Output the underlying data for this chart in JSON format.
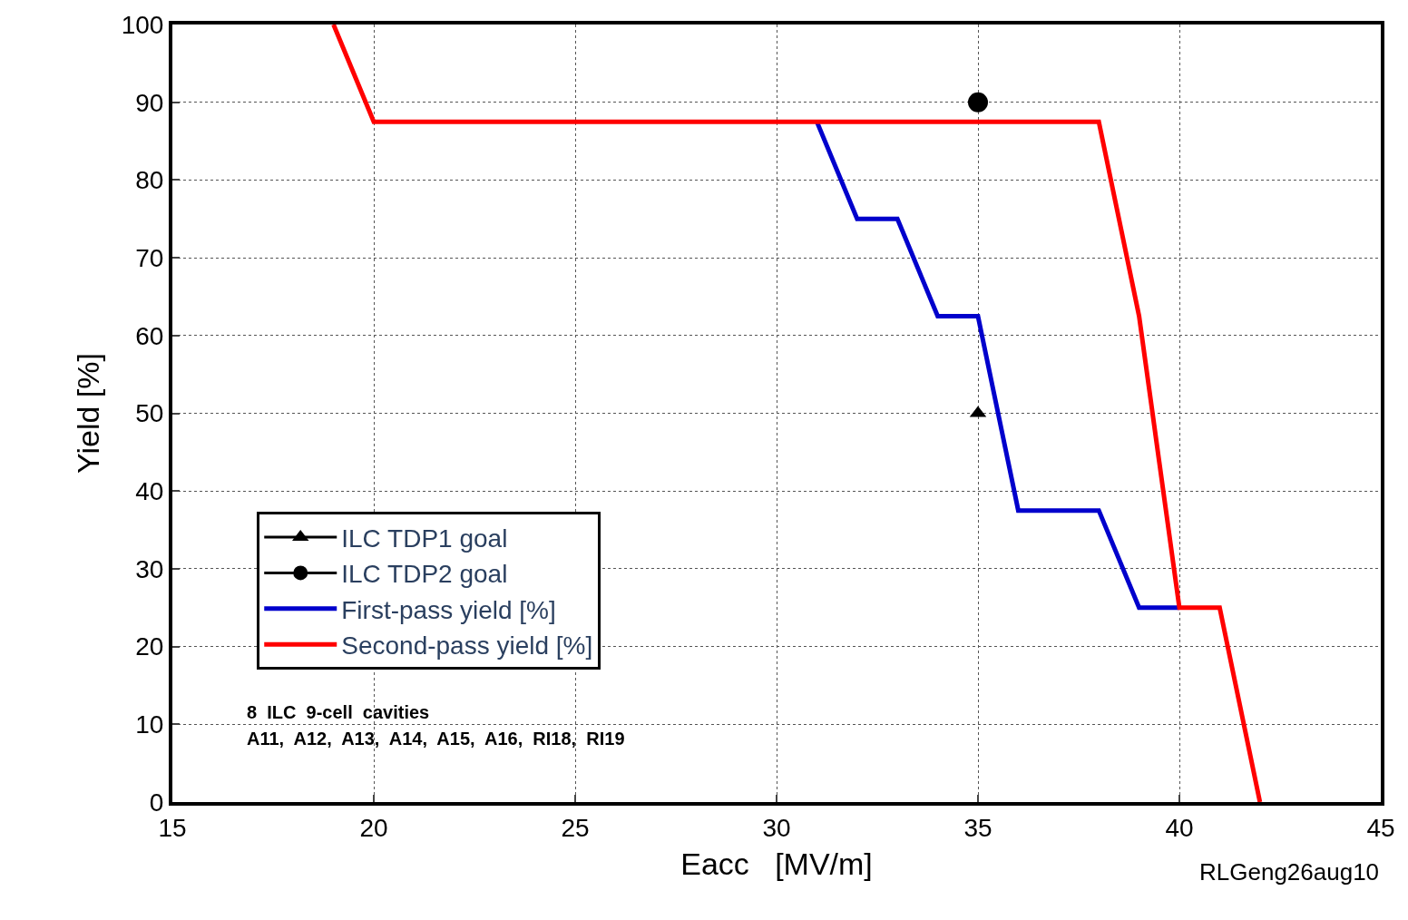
{
  "chart_data": {
    "type": "line",
    "xlabel": "Eacc   [MV/m]",
    "ylabel": "Yield [%]",
    "xlim": [
      15,
      45
    ],
    "xticks": [
      15,
      20,
      25,
      30,
      35,
      40,
      45
    ],
    "ylim": [
      0,
      100
    ],
    "yticks": [
      0,
      10,
      20,
      30,
      40,
      50,
      60,
      70,
      80,
      90,
      100
    ],
    "grid": true,
    "legend": "bottom left",
    "line_style": "solid",
    "series": [
      {
        "name": "ILC TDP1 goal",
        "type": "scatter",
        "marker": "triangle",
        "color": "#000000",
        "x": [
          35
        ],
        "values": [
          50
        ]
      },
      {
        "name": "ILC TDP2 goal",
        "type": "scatter",
        "marker": "circle",
        "color": "#000000",
        "x": [
          35
        ],
        "values": [
          90
        ]
      },
      {
        "name": "First-pass yield [%]",
        "color": "#0000cc",
        "x": [
          31,
          32,
          33,
          34,
          35,
          36,
          38,
          39,
          40
        ],
        "values": [
          87.5,
          75,
          75,
          62.5,
          62.5,
          37.5,
          37.5,
          25,
          25
        ]
      },
      {
        "name": "Second-pass yield [%]",
        "color": "#ff0000",
        "x": [
          19,
          20,
          38,
          39,
          40,
          41,
          42
        ],
        "values": [
          100,
          87.5,
          87.5,
          62.5,
          25,
          25,
          0
        ]
      }
    ],
    "annotations": [
      "8  ILC  9-cell  cavities",
      "A11,  A12,  A13,  A14,  A15,  A16,  RI18,  RI19",
      "RLGeng26aug10"
    ]
  }
}
